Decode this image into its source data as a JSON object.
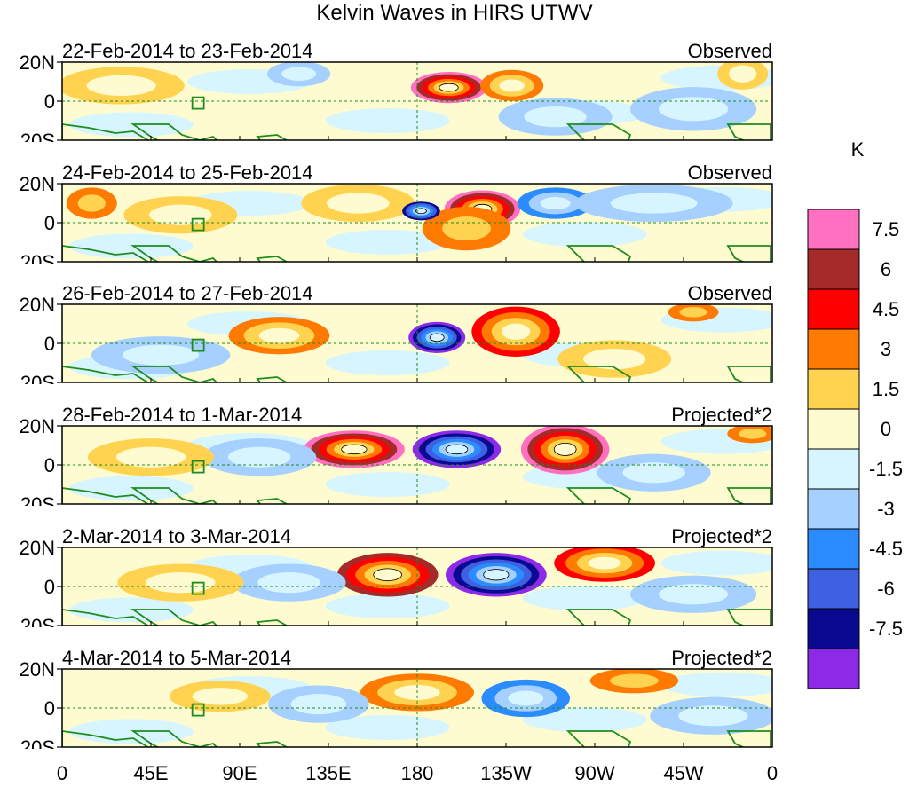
{
  "chart_data": {
    "type": "heatmap",
    "title": "Kelvin Waves in HIRS UTWV",
    "units": "K",
    "x_ticks": [
      "0",
      "45E",
      "90E",
      "135E",
      "180",
      "135W",
      "90W",
      "45W",
      "0"
    ],
    "y_ticks": [
      "20N",
      "0",
      "20S"
    ],
    "xlim": [
      0,
      360
    ],
    "ylim": [
      -20,
      20
    ],
    "colorbar": {
      "levels": [
        "7.5",
        "6",
        "4.5",
        "3",
        "1.5",
        "0",
        "-1.5",
        "-3",
        "-4.5",
        "-6",
        "-7.5"
      ],
      "colors": [
        "#ff70c0",
        "#a52a2a",
        "#ff0000",
        "#ff7a00",
        "#ffd34f",
        "#fffbd0",
        "#d6f5ff",
        "#a5d0ff",
        "#2a8cff",
        "#3f60e0",
        "#0a0a90",
        "#8c2ae8"
      ]
    },
    "panels": [
      {
        "period": "22-Feb-2014 to 23-Feb-2014",
        "kind": "Observed",
        "anomalies": [
          {
            "lon": 196,
            "lat": 7,
            "value": 8.0,
            "sx": 12,
            "sy": 5
          },
          {
            "lon": 228,
            "lat": 8,
            "value": 3.2,
            "sx": 10,
            "sy": 5
          },
          {
            "lon": 30,
            "lat": 8,
            "value": 2.0,
            "sx": 20,
            "sy": 6
          },
          {
            "lon": 120,
            "lat": 14,
            "value": -2.0,
            "sx": 10,
            "sy": 4
          },
          {
            "lon": 320,
            "lat": -4,
            "value": -2.0,
            "sx": 20,
            "sy": 7
          },
          {
            "lon": 250,
            "lat": -8,
            "value": -1.7,
            "sx": 18,
            "sy": 6
          },
          {
            "lon": 345,
            "lat": 14,
            "value": 2.0,
            "sx": 8,
            "sy": 5
          }
        ]
      },
      {
        "period": "24-Feb-2014 to 25-Feb-2014",
        "kind": "Observed",
        "anomalies": [
          {
            "lon": 213,
            "lat": 7,
            "value": 8.0,
            "sx": 12,
            "sy": 6
          },
          {
            "lon": 205,
            "lat": -3,
            "value": 3.0,
            "sx": 14,
            "sy": 7
          },
          {
            "lon": 150,
            "lat": 10,
            "value": 2.0,
            "sx": 18,
            "sy": 6
          },
          {
            "lon": 182,
            "lat": 6,
            "value": -6.5,
            "sx": 6,
            "sy": 3
          },
          {
            "lon": 250,
            "lat": 10,
            "value": -3.5,
            "sx": 12,
            "sy": 5
          },
          {
            "lon": 60,
            "lat": 4,
            "value": 2.0,
            "sx": 18,
            "sy": 6
          },
          {
            "lon": 15,
            "lat": 10,
            "value": 3.0,
            "sx": 8,
            "sy": 5
          },
          {
            "lon": 300,
            "lat": 10,
            "value": -2.0,
            "sx": 25,
            "sy": 6
          }
        ]
      },
      {
        "period": "26-Feb-2014 to 27-Feb-2014",
        "kind": "Observed",
        "anomalies": [
          {
            "lon": 190,
            "lat": 3,
            "value": -7.8,
            "sx": 9,
            "sy": 5
          },
          {
            "lon": 230,
            "lat": 6,
            "value": 5.0,
            "sx": 14,
            "sy": 8
          },
          {
            "lon": 110,
            "lat": 4,
            "value": 3.2,
            "sx": 16,
            "sy": 6
          },
          {
            "lon": 320,
            "lat": 16,
            "value": 3.0,
            "sx": 8,
            "sy": 3
          },
          {
            "lon": 50,
            "lat": -6,
            "value": -2.0,
            "sx": 22,
            "sy": 6
          },
          {
            "lon": 280,
            "lat": -8,
            "value": 1.8,
            "sx": 18,
            "sy": 6
          }
        ]
      },
      {
        "period": "28-Feb-2014 to 1-Mar-2014",
        "kind": "Projected*2",
        "anomalies": [
          {
            "lon": 148,
            "lat": 8,
            "value": 8.0,
            "sx": 16,
            "sy": 6
          },
          {
            "lon": 200,
            "lat": 8,
            "value": -8.5,
            "sx": 14,
            "sy": 6
          },
          {
            "lon": 255,
            "lat": 8,
            "value": 8.0,
            "sx": 14,
            "sy": 8
          },
          {
            "lon": 100,
            "lat": 4,
            "value": -3.0,
            "sx": 18,
            "sy": 6
          },
          {
            "lon": 300,
            "lat": -4,
            "value": -3.0,
            "sx": 18,
            "sy": 6
          },
          {
            "lon": 45,
            "lat": 4,
            "value": 2.0,
            "sx": 20,
            "sy": 6
          },
          {
            "lon": 350,
            "lat": 16,
            "value": 3.0,
            "sx": 8,
            "sy": 3
          }
        ]
      },
      {
        "period": "2-Mar-2014 to 3-Mar-2014",
        "kind": "Projected*2",
        "anomalies": [
          {
            "lon": 165,
            "lat": 6,
            "value": 6.5,
            "sx": 16,
            "sy": 7
          },
          {
            "lon": 220,
            "lat": 6,
            "value": -7.8,
            "sx": 16,
            "sy": 7
          },
          {
            "lon": 275,
            "lat": 12,
            "value": 5.5,
            "sx": 16,
            "sy": 6
          },
          {
            "lon": 115,
            "lat": 2,
            "value": -3.0,
            "sx": 18,
            "sy": 6
          },
          {
            "lon": 320,
            "lat": -4,
            "value": -2.5,
            "sx": 20,
            "sy": 6
          },
          {
            "lon": 60,
            "lat": 2,
            "value": 2.0,
            "sx": 20,
            "sy": 6
          }
        ]
      },
      {
        "period": "4-Mar-2014 to 5-Mar-2014",
        "kind": "Projected*2",
        "anomalies": [
          {
            "lon": 180,
            "lat": 8,
            "value": 3.2,
            "sx": 18,
            "sy": 6
          },
          {
            "lon": 235,
            "lat": 5,
            "value": -3.5,
            "sx": 14,
            "sy": 6
          },
          {
            "lon": 290,
            "lat": 14,
            "value": 3.0,
            "sx": 14,
            "sy": 4
          },
          {
            "lon": 130,
            "lat": 2,
            "value": -3.0,
            "sx": 16,
            "sy": 6
          },
          {
            "lon": 80,
            "lat": 6,
            "value": 2.0,
            "sx": 16,
            "sy": 5
          },
          {
            "lon": 330,
            "lat": -4,
            "value": -2.0,
            "sx": 20,
            "sy": 6
          }
        ]
      }
    ]
  }
}
